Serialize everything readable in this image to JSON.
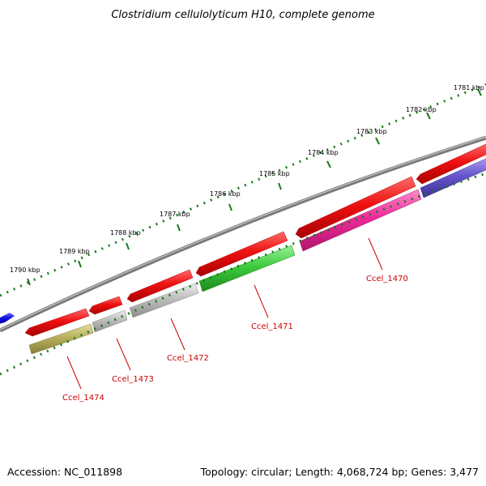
{
  "title": "Clostridium cellulolyticum H10, complete genome",
  "footer": {
    "accession": "Accession: NC_011898",
    "summary": "Topology: circular; Length: 4,068,724 bp; Genes: 3,477"
  },
  "ruler_labels": [
    "1781 kbp",
    "1782 kbp",
    "1783 kbp",
    "1784 kbp",
    "1785 kbp",
    "1786 kbp",
    "1787 kbp",
    "1788 kbp",
    "1789 kbp",
    "1790 kbp"
  ],
  "gene_labels": [
    "Ccel_1470",
    "Ccel_1471",
    "Ccel_1472",
    "Ccel_1473",
    "Ccel_1474"
  ],
  "colors": {
    "backbone": "#7a7a7a",
    "ruler_tick": "#1a7a1a",
    "cds": "#ee1111",
    "blue_feature": "#1414e6",
    "leader_line": "#cc0000",
    "gene_label_text": "#cc0000",
    "genes": {
      "Ccel_1470": "#ee2a9a",
      "Ccel_1471": "#3ccc3c",
      "Ccel_1472": "#bdbdbd",
      "Ccel_1473": "#bdbdbd",
      "Ccel_1474": "#b8b060",
      "unlabeled": "#6655cc"
    }
  }
}
